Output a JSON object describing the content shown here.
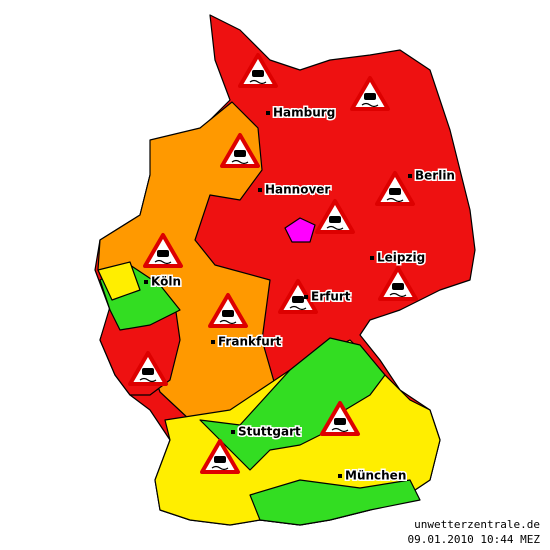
{
  "cities": [
    "Hamburg",
    "Hannover",
    "Berlin",
    "Leipzig",
    "Köln",
    "Erfurt",
    "Frankfurt",
    "Stuttgart",
    "München"
  ],
  "watermark": {
    "site": "unwetterzentrale.de",
    "timestamp": "09.01.2010 10:44 MEZ"
  }
}
